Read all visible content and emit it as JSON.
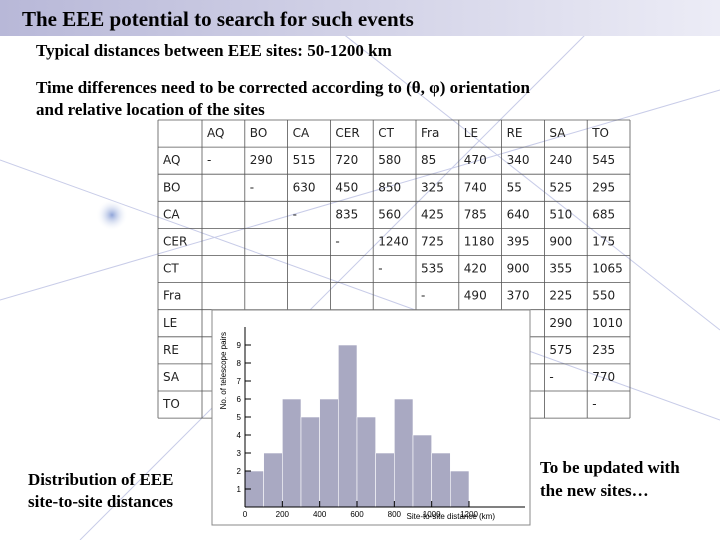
{
  "header": {
    "title": "The EEE potential to search for such events"
  },
  "bullets": [
    "Typical distances between EEE sites: 50-1200 km",
    "Time differences need to be corrected according to (θ, φ) orientation",
    "and relative location of the sites"
  ],
  "table": {
    "columns": [
      "AQ",
      "BO",
      "CA",
      "CER",
      "CT",
      "Fra",
      "LE",
      "RE",
      "SA",
      "TO"
    ],
    "rows": [
      {
        "label": "AQ",
        "cells": [
          "-",
          290,
          515,
          720,
          580,
          85,
          470,
          340,
          240,
          545
        ]
      },
      {
        "label": "BO",
        "cells": [
          null,
          "-",
          630,
          450,
          850,
          325,
          740,
          55,
          525,
          295
        ]
      },
      {
        "label": "CA",
        "cells": [
          null,
          null,
          "-",
          835,
          560,
          425,
          785,
          640,
          510,
          685
        ]
      },
      {
        "label": "CER",
        "cells": [
          null,
          null,
          null,
          "-",
          1240,
          725,
          1180,
          395,
          900,
          175
        ]
      },
      {
        "label": "CT",
        "cells": [
          null,
          null,
          null,
          null,
          "-",
          535,
          420,
          900,
          355,
          1065
        ]
      },
      {
        "label": "Fra",
        "cells": [
          null,
          null,
          null,
          null,
          null,
          "-",
          490,
          370,
          225,
          550
        ]
      },
      {
        "label": "LE",
        "cells": [
          null,
          null,
          null,
          null,
          null,
          null,
          null,
          null,
          290,
          1010
        ]
      },
      {
        "label": "RE",
        "cells": [
          null,
          null,
          null,
          null,
          null,
          null,
          null,
          null,
          575,
          235
        ]
      },
      {
        "label": "SA",
        "cells": [
          null,
          null,
          null,
          null,
          null,
          null,
          null,
          null,
          "-",
          770
        ]
      },
      {
        "label": "TO",
        "cells": [
          null,
          null,
          null,
          null,
          null,
          null,
          null,
          null,
          null,
          "-"
        ]
      }
    ]
  },
  "notes": {
    "left": [
      "Distribution of EEE",
      "site-to-site distances"
    ],
    "right": [
      "To be updated with",
      "the new sites…"
    ]
  },
  "chart_data": {
    "type": "histogram",
    "x_label": "Site-to-site distance (km)",
    "y_label": "No. of telescope pairs",
    "bins": [
      0,
      100,
      200,
      300,
      400,
      500,
      600,
      700,
      800,
      900,
      1000,
      1100,
      1200
    ],
    "counts": [
      2,
      3,
      6,
      5,
      6,
      9,
      5,
      3,
      6,
      4,
      3,
      2
    ],
    "color": "#a9a9c2",
    "xlim": [
      0,
      1500
    ],
    "xticks": [
      0,
      200,
      400,
      600,
      800,
      1000,
      1200
    ],
    "ylim": [
      0,
      10
    ],
    "yticks": [
      1,
      2,
      3,
      4,
      5,
      6,
      7,
      8,
      9
    ]
  }
}
